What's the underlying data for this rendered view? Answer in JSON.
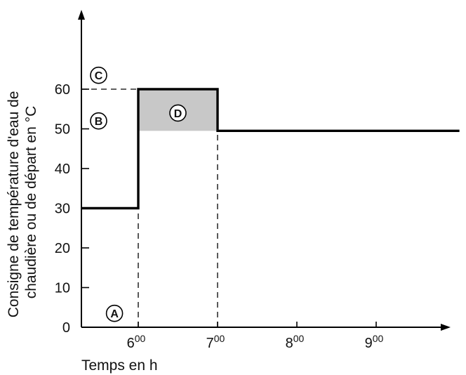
{
  "chart_data": {
    "type": "line",
    "ylabel_lines": [
      "Consigne de température d'eau de",
      "chaudière ou de départ en °C"
    ],
    "xlabel": "Temps en h",
    "y_ticks": [
      "0",
      "10",
      "20",
      "30",
      "40",
      "50",
      "60"
    ],
    "x_ticks": [
      {
        "hour": "6",
        "min": "00",
        "value": 6
      },
      {
        "hour": "7",
        "min": "00",
        "value": 7
      },
      {
        "hour": "8",
        "min": "00",
        "value": 8
      },
      {
        "hour": "9",
        "min": "00",
        "value": 9
      }
    ],
    "ylim": [
      0,
      60
    ],
    "xlim": [
      5.28,
      10.05
    ],
    "series": [
      {
        "points": [
          [
            5.28,
            30
          ],
          [
            6,
            30
          ],
          [
            6,
            60
          ],
          [
            7,
            60
          ],
          [
            7,
            49.5
          ],
          [
            10.05,
            49.5
          ]
        ],
        "color": "#000000"
      }
    ],
    "shaded_region": {
      "x": [
        6,
        7
      ],
      "y": [
        49.5,
        60
      ],
      "color": "#c8c8c8"
    },
    "reference_lines": [
      {
        "type": "horizontal",
        "y": 60,
        "x_from": 5.28,
        "x_to": 6
      },
      {
        "type": "vertical",
        "x": 6,
        "y_from": 0,
        "y_to": 30
      },
      {
        "type": "vertical",
        "x": 7,
        "y_from": 0,
        "y_to": 49.5
      }
    ],
    "markers": [
      {
        "label": "A",
        "x": 5.7,
        "y": 3.5
      },
      {
        "label": "B",
        "x": 5.5,
        "y": 52
      },
      {
        "label": "C",
        "x": 5.5,
        "y": 63.5
      },
      {
        "label": "D",
        "x": 6.5,
        "y": 54
      }
    ],
    "grid": false
  }
}
